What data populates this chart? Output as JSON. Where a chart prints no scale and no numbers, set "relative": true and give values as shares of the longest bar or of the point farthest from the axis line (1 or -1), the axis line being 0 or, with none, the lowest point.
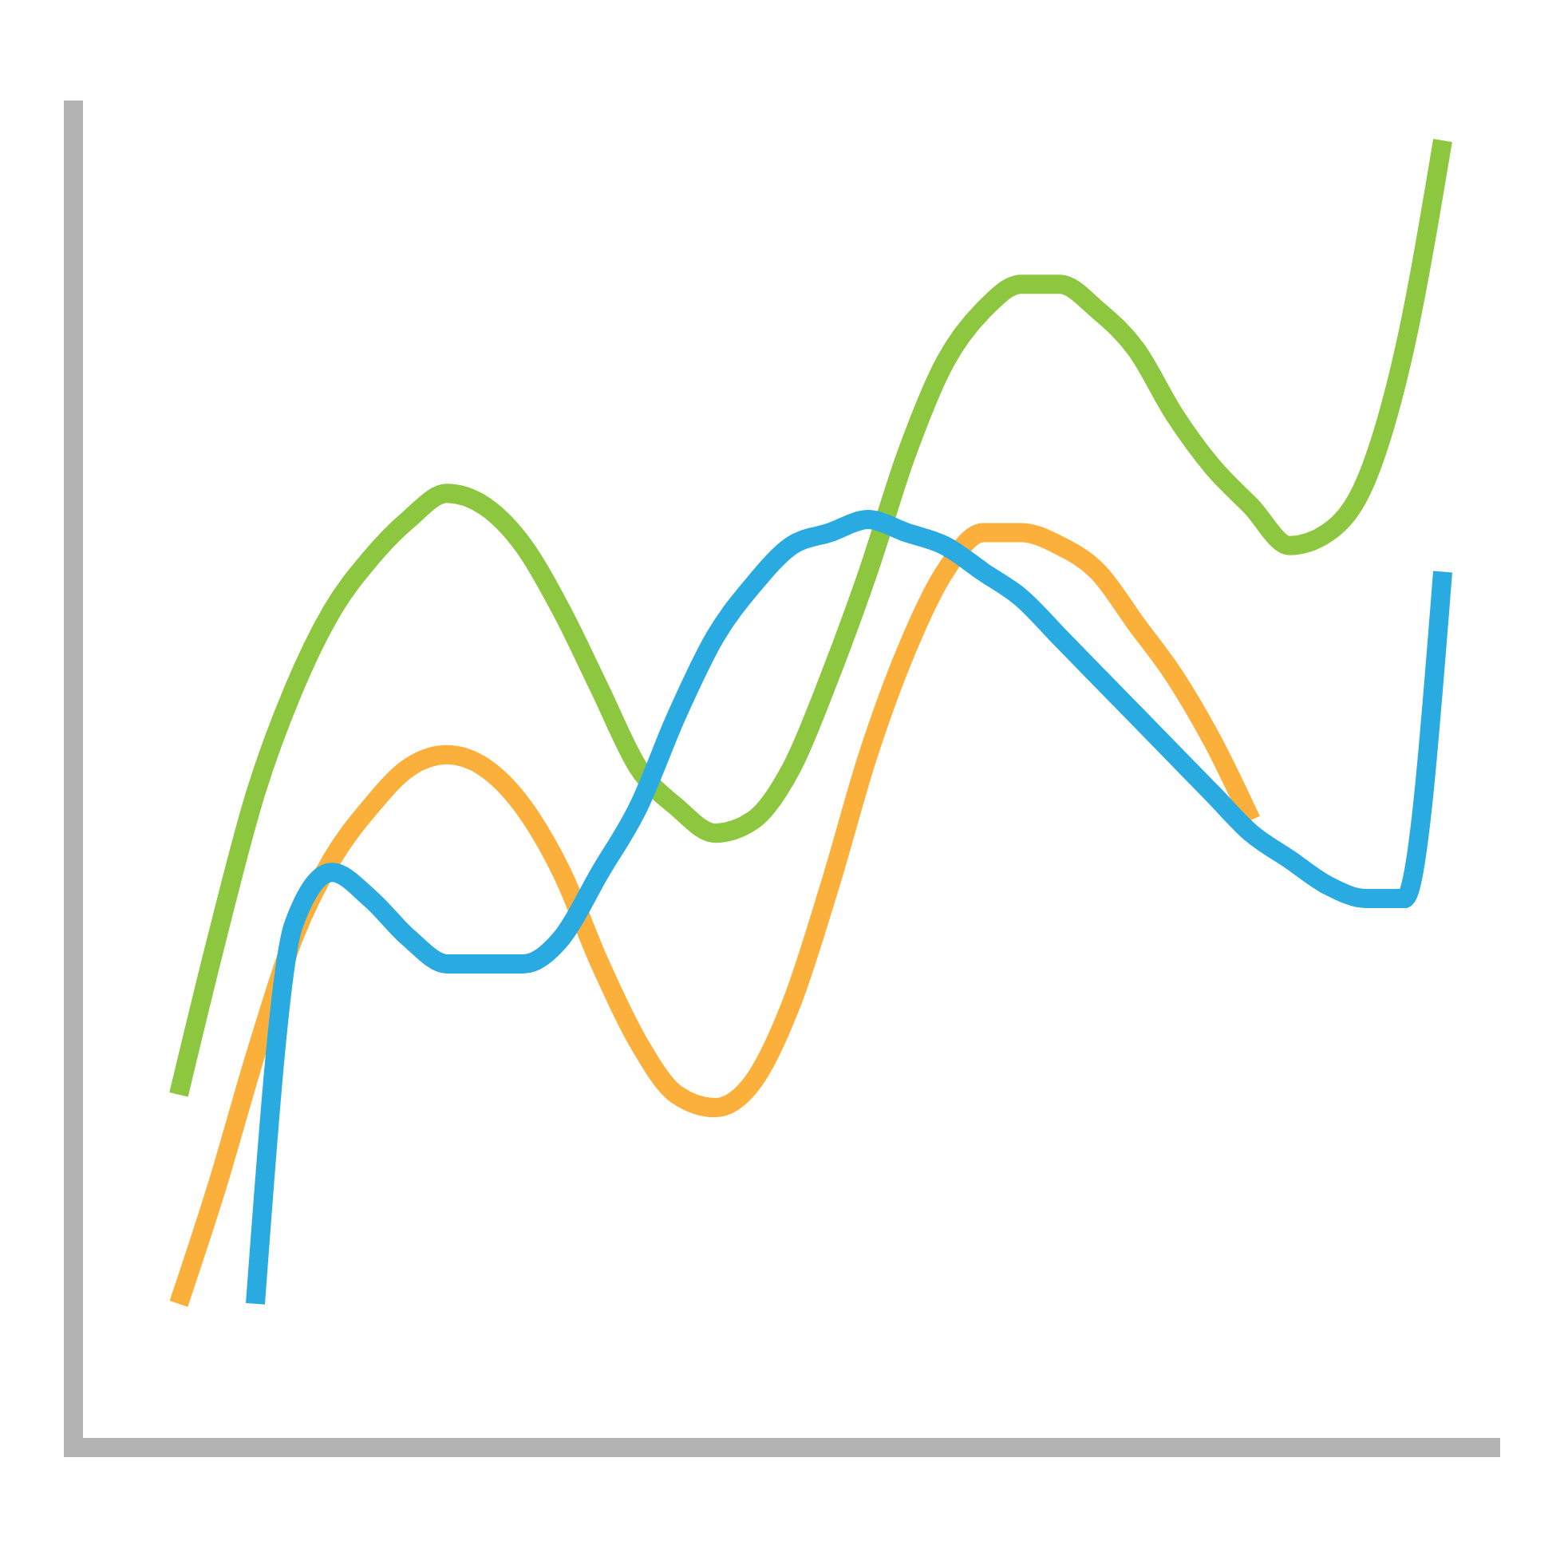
{
  "chart_data": {
    "type": "line",
    "relative": true,
    "categories": [
      null,
      null,
      null,
      null,
      null,
      null,
      null,
      null,
      null,
      null,
      null,
      null,
      null,
      null,
      null,
      null,
      null,
      null,
      null,
      null,
      null,
      null,
      null,
      null,
      null,
      null,
      null,
      null,
      null,
      null,
      null,
      null,
      null,
      null
    ],
    "series": [
      {
        "color": "#8dc63f",
        "values": [
          0.27,
          0.39,
          0.5,
          0.58,
          0.64,
          0.68,
          0.71,
          0.73,
          0.72,
          0.69,
          0.64,
          0.58,
          0.52,
          0.49,
          0.47,
          0.48,
          0.52,
          0.59,
          0.67,
          0.76,
          0.83,
          0.87,
          0.89,
          0.89,
          0.87,
          0.84,
          0.79,
          0.75,
          0.72,
          0.69,
          0.7,
          0.74,
          0.84,
          1
        ]
      },
      {
        "color": "#fbb03b",
        "values": [
          0.11,
          0.2,
          0.3,
          0.39,
          0.45,
          0.49,
          0.52,
          0.53,
          0.52,
          0.49,
          0.44,
          0.37,
          0.31,
          0.27,
          0.26,
          0.28,
          0.34,
          0.43,
          0.53,
          0.61,
          0.67,
          0.7,
          0.7,
          0.69,
          0.67,
          0.63,
          0.59,
          0.54,
          0.48,
          null,
          null,
          null,
          null,
          null
        ]
      },
      {
        "color": "#29abe2",
        "values": [
          null,
          null,
          0.11,
          0.4,
          0.44,
          0.42,
          0.39,
          0.37,
          0.37,
          0.37,
          0.39,
          0.44,
          0.49,
          0.56,
          0.62,
          0.66,
          0.69,
          0.7,
          0.71,
          0.7,
          0.69,
          0.67,
          0.65,
          0.62,
          0.59,
          0.56,
          0.53,
          0.5,
          0.47,
          0.45,
          0.43,
          0.42,
          0.42,
          0.67
        ]
      }
    ]
  }
}
